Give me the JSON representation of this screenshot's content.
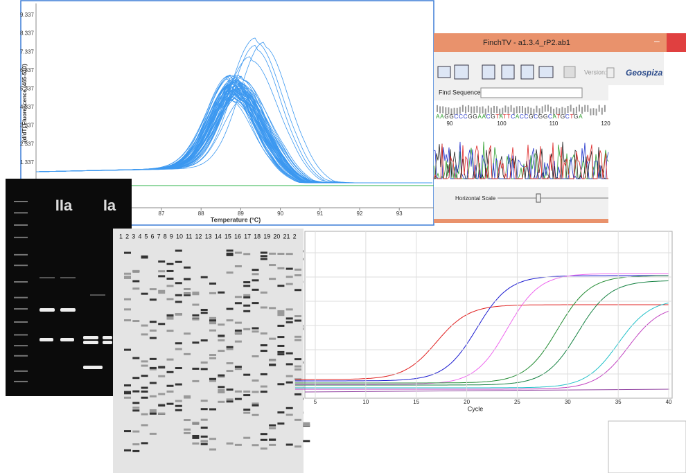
{
  "melt_panel": {
    "yticks": [
      "9.337",
      "8.337",
      "7.337",
      "6.337",
      "5.337",
      "4.337",
      "3.337",
      "2.337",
      "1.337"
    ],
    "ylabel": "-(d/dT) Fluorescence (465-510)",
    "xticks": [
      "87",
      "88",
      "89",
      "90",
      "91",
      "92",
      "93"
    ],
    "xlabel": "Temperature (°C)"
  },
  "finchtv": {
    "title": "FinchTV - a1.3.4_rP2.ab1",
    "version": "Version:",
    "brand": "Geospiza",
    "find": "Find Sequence",
    "sequence": "AAGGCCCGGAACGTATTCACCGCGGCATGCTGA",
    "positions": [
      "90",
      "100",
      "110",
      "120"
    ],
    "scale": "Horizontal Scale"
  },
  "gel_left": {
    "labels": [
      "IIa",
      "Ia"
    ]
  },
  "gel_right": {
    "lanes": "1 2 3 4 5 6 7 8 9 10 11 12 13 14 15 16 17 18 19 20 21 2"
  },
  "qpcr_panel": {
    "xticks": [
      "5",
      "10",
      "15",
      "20",
      "25",
      "30",
      "35",
      "40"
    ],
    "xlabel": "Cycle"
  }
}
